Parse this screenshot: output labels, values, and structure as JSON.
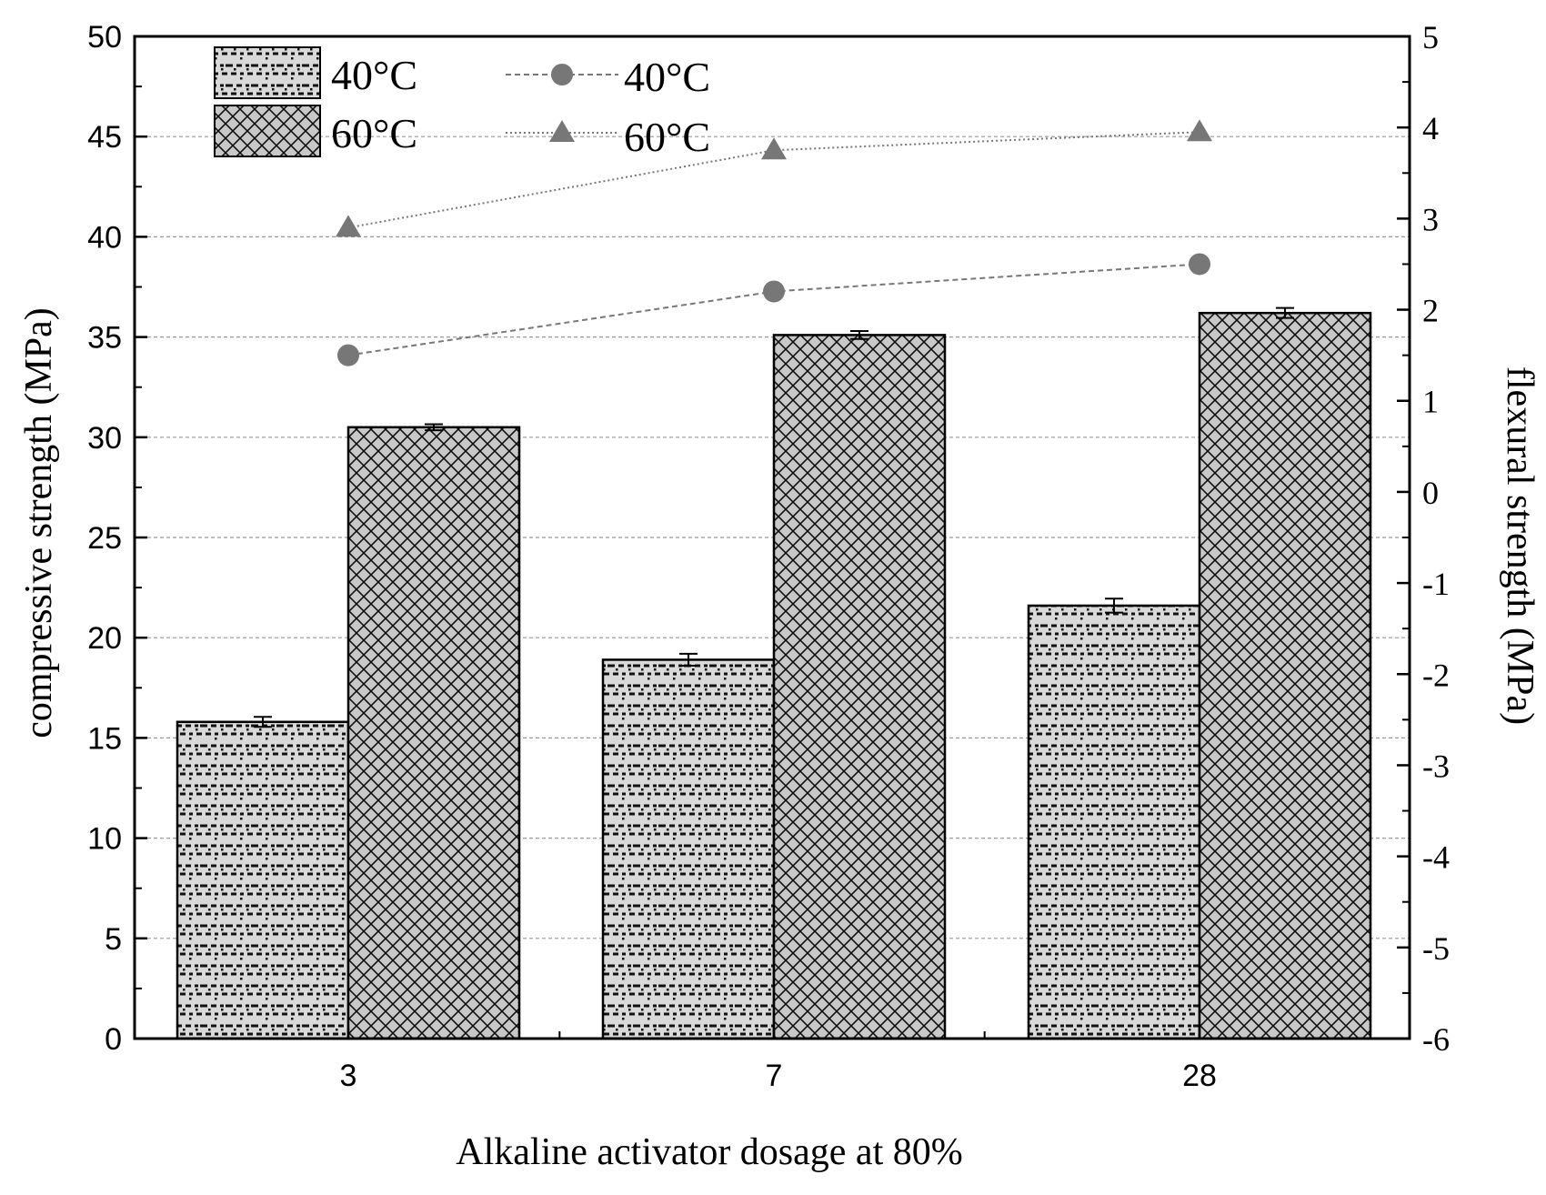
{
  "chart_data": {
    "type": "bar+line",
    "title": "",
    "xlabel": "Alkaline activator dosage at 80%",
    "ylabel_left": "compressive strength (MPa)",
    "ylabel_right": "flexural strength (MPa)",
    "categories": [
      "3",
      "7",
      "28"
    ],
    "ylim_left": [
      0,
      50
    ],
    "yticks_left": [
      "0",
      "5",
      "10",
      "15",
      "20",
      "25",
      "30",
      "35",
      "40",
      "45",
      "50"
    ],
    "ylim_right": [
      -6,
      5
    ],
    "yticks_right": [
      "-6",
      "-5",
      "-4",
      "-3",
      "-2",
      "-1",
      "0",
      "1",
      "2",
      "3",
      "4",
      "5"
    ],
    "grid": "horizontal dashed",
    "bar_series": [
      {
        "name": "40°C",
        "values": [
          15.8,
          18.9,
          21.6
        ],
        "errors": [
          0.25,
          0.3,
          0.35
        ],
        "pattern": "dotted-dash",
        "fill": "#d9d9d9"
      },
      {
        "name": "60°C",
        "values": [
          30.5,
          35.1,
          36.2
        ],
        "errors": [
          0.15,
          0.2,
          0.25
        ],
        "pattern": "crosshatch",
        "fill": "#c8c8c8"
      }
    ],
    "line_series": [
      {
        "name": "40°C",
        "marker": "circle",
        "values": [
          1.5,
          2.2,
          2.5
        ],
        "color": "#777777"
      },
      {
        "name": "60°C",
        "marker": "triangle",
        "values": [
          2.9,
          3.75,
          3.95
        ],
        "color": "#777777"
      }
    ],
    "legend": {
      "placement": "top-left",
      "bar_labels": [
        "40°C",
        "60°C"
      ],
      "line_labels": [
        "40°C",
        "60°C"
      ]
    }
  }
}
